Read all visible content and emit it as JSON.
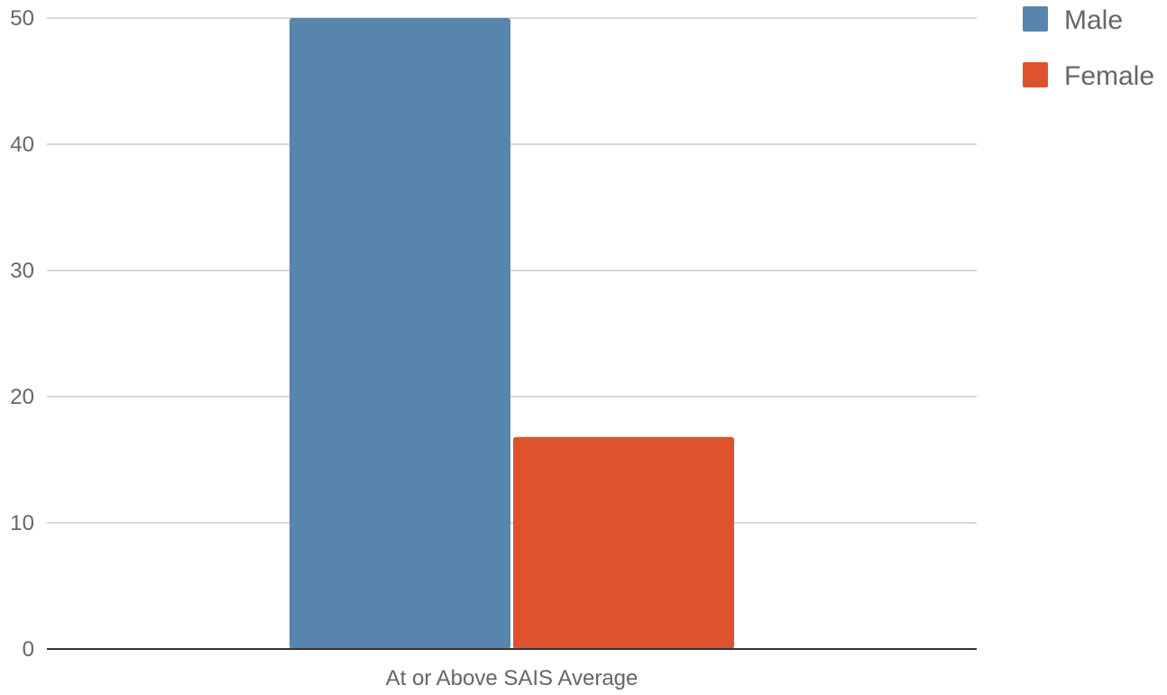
{
  "chart_data": {
    "type": "bar",
    "categories": [
      "At or Above SAIS Average"
    ],
    "series": [
      {
        "name": "Male",
        "values": [
          50
        ],
        "color": "#5885ad"
      },
      {
        "name": "Female",
        "values": [
          16.8
        ],
        "color": "#de532e"
      }
    ],
    "title": "",
    "xlabel": "",
    "ylabel": "",
    "ylim": [
      0,
      50
    ],
    "yticks": [
      0,
      10,
      20,
      30,
      40,
      50
    ],
    "grid": true,
    "legend_position": "top-right"
  }
}
